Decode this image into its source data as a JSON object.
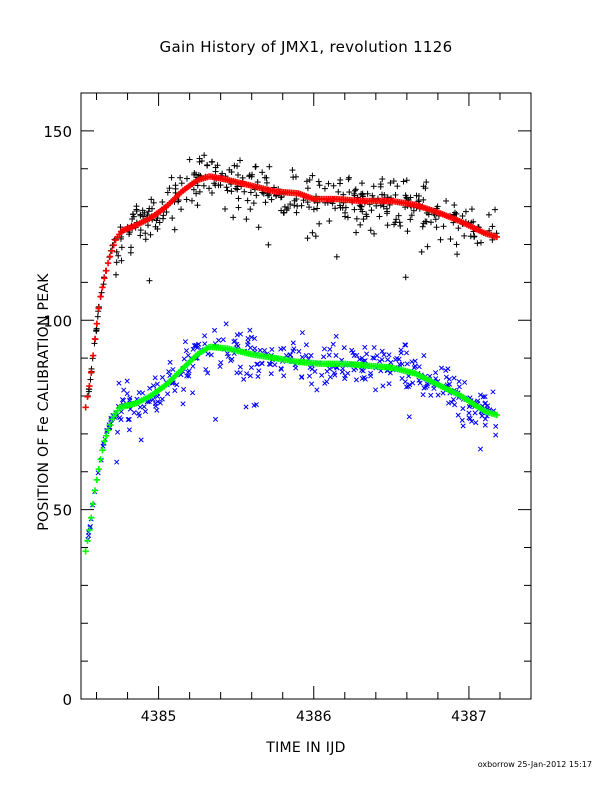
{
  "chart_data": {
    "type": "scatter",
    "title": "Gain History of JMX1, revolution 1126",
    "xlabel": "TIME IN IJD",
    "ylabel": "POSITION OF Fe CALIBRATION PEAK",
    "xlim": [
      4384.5,
      4387.4
    ],
    "ylim": [
      0,
      160
    ],
    "x_ticks": [
      4385,
      4386,
      4387
    ],
    "x_tick_labels": [
      "4385",
      "4386",
      "4387"
    ],
    "y_ticks": [
      0,
      50,
      100,
      150
    ],
    "y_tick_labels": [
      "0",
      "50",
      "100",
      "150"
    ],
    "grid": false,
    "legend": "none",
    "series": [
      {
        "marker": "+",
        "color": "#000000",
        "role": "measured",
        "fit": [
          [
            4384.53,
            77
          ],
          [
            4384.56,
            84
          ],
          [
            4384.59,
            95
          ],
          [
            4384.62,
            105
          ],
          [
            4384.65,
            111
          ],
          [
            4384.68,
            116
          ],
          [
            4384.72,
            121
          ],
          [
            4384.76,
            123.5
          ],
          [
            4384.85,
            125
          ],
          [
            4384.95,
            127
          ],
          [
            4385.05,
            130
          ],
          [
            4385.15,
            134
          ],
          [
            4385.25,
            137
          ],
          [
            4385.33,
            138
          ],
          [
            4385.45,
            137
          ],
          [
            4385.6,
            135.5
          ],
          [
            4385.75,
            134
          ],
          [
            4385.9,
            133.5
          ],
          [
            4386.0,
            132
          ],
          [
            4386.15,
            132
          ],
          [
            4386.3,
            131.5
          ],
          [
            4386.5,
            131.5
          ],
          [
            4386.65,
            130.5
          ],
          [
            4386.8,
            128.5
          ],
          [
            4386.95,
            126
          ],
          [
            4387.1,
            123
          ],
          [
            4387.18,
            122
          ]
        ],
        "scatter_width": 6
      },
      {
        "marker": "+",
        "color": "#ff0000",
        "role": "smoothed",
        "values": [
          [
            4384.53,
            77
          ],
          [
            4384.56,
            84
          ],
          [
            4384.59,
            95
          ],
          [
            4384.62,
            105
          ],
          [
            4384.65,
            111
          ],
          [
            4384.68,
            116
          ],
          [
            4384.72,
            121
          ],
          [
            4384.76,
            123.5
          ],
          [
            4384.85,
            125
          ],
          [
            4384.95,
            127
          ],
          [
            4385.05,
            130
          ],
          [
            4385.15,
            134
          ],
          [
            4385.25,
            137
          ],
          [
            4385.33,
            138
          ],
          [
            4385.45,
            137
          ],
          [
            4385.6,
            135.5
          ],
          [
            4385.75,
            134
          ],
          [
            4385.9,
            133.5
          ],
          [
            4386.0,
            132
          ],
          [
            4386.15,
            132
          ],
          [
            4386.3,
            131.5
          ],
          [
            4386.5,
            131.5
          ],
          [
            4386.65,
            130.5
          ],
          [
            4386.8,
            128.5
          ],
          [
            4386.95,
            126
          ],
          [
            4387.1,
            123
          ],
          [
            4387.18,
            122
          ]
        ]
      },
      {
        "marker": "x",
        "color": "#0000ff",
        "role": "measured",
        "fit": [
          [
            4384.53,
            39
          ],
          [
            4384.56,
            46
          ],
          [
            4384.59,
            55
          ],
          [
            4384.62,
            62
          ],
          [
            4384.65,
            68
          ],
          [
            4384.7,
            74
          ],
          [
            4384.75,
            77
          ],
          [
            4384.85,
            78
          ],
          [
            4384.95,
            80
          ],
          [
            4385.05,
            83
          ],
          [
            4385.15,
            87
          ],
          [
            4385.25,
            91
          ],
          [
            4385.33,
            93
          ],
          [
            4385.45,
            92.5
          ],
          [
            4385.6,
            91
          ],
          [
            4385.75,
            90
          ],
          [
            4385.9,
            89
          ],
          [
            4386.05,
            88.5
          ],
          [
            4386.2,
            88.5
          ],
          [
            4386.35,
            88
          ],
          [
            4386.5,
            87.5
          ],
          [
            4386.65,
            86
          ],
          [
            4386.8,
            83
          ],
          [
            4386.95,
            80
          ],
          [
            4387.1,
            76
          ],
          [
            4387.18,
            75
          ]
        ],
        "scatter_width": 6
      },
      {
        "marker": "+",
        "color": "#00ff00",
        "role": "smoothed",
        "values": [
          [
            4384.53,
            39
          ],
          [
            4384.56,
            46
          ],
          [
            4384.59,
            55
          ],
          [
            4384.62,
            62
          ],
          [
            4384.65,
            68
          ],
          [
            4384.7,
            74
          ],
          [
            4384.75,
            77
          ],
          [
            4384.85,
            78
          ],
          [
            4384.95,
            80
          ],
          [
            4385.05,
            83
          ],
          [
            4385.15,
            87
          ],
          [
            4385.25,
            91
          ],
          [
            4385.33,
            93
          ],
          [
            4385.45,
            92.5
          ],
          [
            4385.6,
            91
          ],
          [
            4385.75,
            90
          ],
          [
            4385.9,
            89
          ],
          [
            4386.05,
            88.5
          ],
          [
            4386.2,
            88.5
          ],
          [
            4386.35,
            88
          ],
          [
            4386.5,
            87.5
          ],
          [
            4386.65,
            86
          ],
          [
            4386.8,
            83
          ],
          [
            4386.95,
            80
          ],
          [
            4387.1,
            76
          ],
          [
            4387.18,
            75
          ]
        ]
      }
    ]
  },
  "footer": "oxborrow 25-Jan-2012 15:17"
}
